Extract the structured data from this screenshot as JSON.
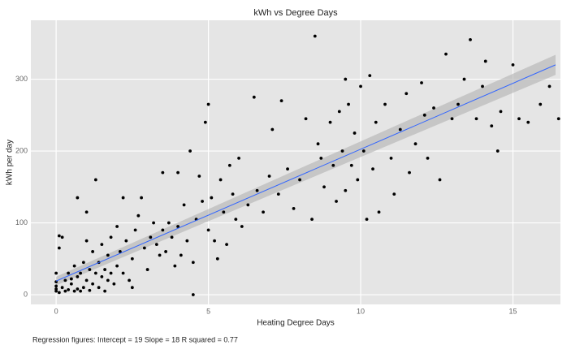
{
  "chart_data": {
    "type": "scatter",
    "title": "kWh vs Degree Days",
    "xlabel": "Heating Degree Days",
    "ylabel": "kWh per day",
    "caption": "Regression figures: Intercept = 19  Slope = 18  R squared = 0.77",
    "xlim": [
      -0.83,
      16.56
    ],
    "ylim": [
      -13.5,
      382
    ],
    "xticks": [
      0,
      5,
      10,
      15
    ],
    "yticks": [
      0,
      100,
      200,
      300
    ],
    "grid": true,
    "color": "#000000",
    "regression": {
      "color": "#3366ff",
      "band_color": "#b0b0b0",
      "x": [
        0,
        16.4
      ],
      "y": [
        19,
        320
      ],
      "lower": [
        13,
        306
      ],
      "upper": [
        25,
        334
      ]
    },
    "x": [
      0,
      0,
      0.1,
      0,
      0,
      0,
      0.1,
      0.1,
      0.2,
      0.2,
      0.3,
      0.3,
      0.4,
      0.4,
      0.5,
      0.5,
      0.6,
      0.6,
      0.7,
      0.7,
      0.7,
      0.8,
      0.8,
      0.9,
      0.9,
      1.0,
      1.0,
      1.0,
      1.1,
      1.1,
      1.2,
      1.2,
      1.3,
      1.3,
      1.4,
      1.4,
      1.5,
      1.5,
      1.6,
      1.6,
      1.7,
      1.7,
      1.8,
      1.8,
      1.9,
      2.0,
      2.0,
      2.1,
      2.2,
      2.2,
      2.3,
      2.4,
      2.5,
      2.5,
      2.6,
      2.7,
      2.8,
      2.9,
      3.0,
      3.1,
      3.2,
      3.3,
      3.4,
      3.5,
      3.5,
      3.6,
      3.7,
      3.8,
      3.9,
      4.0,
      4.0,
      4.1,
      4.2,
      4.3,
      4.4,
      4.5,
      4.5,
      4.6,
      4.7,
      4.8,
      4.9,
      5.0,
      5.0,
      5.1,
      5.2,
      5.3,
      5.4,
      5.5,
      5.6,
      5.7,
      5.8,
      5.9,
      6.0,
      6.1,
      6.3,
      6.5,
      6.6,
      6.8,
      7.0,
      7.1,
      7.3,
      7.4,
      7.6,
      7.8,
      8.0,
      8.2,
      8.4,
      8.5,
      8.6,
      8.7,
      8.8,
      9.0,
      9.1,
      9.2,
      9.3,
      9.4,
      9.5,
      9.5,
      9.6,
      9.7,
      9.8,
      9.9,
      10.0,
      10.1,
      10.2,
      10.3,
      10.4,
      10.5,
      10.6,
      10.8,
      11.0,
      11.1,
      11.3,
      11.5,
      11.6,
      11.8,
      12.0,
      12.1,
      12.2,
      12.4,
      12.6,
      12.8,
      13.0,
      13.2,
      13.4,
      13.6,
      13.8,
      14.0,
      14.1,
      14.3,
      14.5,
      14.6,
      15.0,
      15.2,
      15.5,
      15.9,
      16.2,
      16.5
    ],
    "values": [
      5,
      8,
      3,
      12,
      18,
      30,
      65,
      82,
      80,
      10,
      5,
      20,
      7,
      30,
      15,
      22,
      5,
      40,
      8,
      25,
      135,
      5,
      30,
      10,
      45,
      20,
      115,
      75,
      6,
      35,
      15,
      60,
      30,
      160,
      10,
      45,
      25,
      70,
      35,
      5,
      55,
      20,
      80,
      30,
      15,
      40,
      95,
      60,
      30,
      135,
      75,
      20,
      50,
      10,
      90,
      110,
      135,
      65,
      35,
      80,
      100,
      70,
      55,
      90,
      170,
      60,
      100,
      80,
      40,
      95,
      170,
      55,
      125,
      75,
      200,
      45,
      0,
      105,
      165,
      130,
      240,
      265,
      90,
      135,
      75,
      50,
      160,
      115,
      70,
      180,
      140,
      105,
      190,
      95,
      125,
      275,
      145,
      115,
      165,
      230,
      140,
      270,
      175,
      120,
      160,
      245,
      105,
      360,
      210,
      190,
      150,
      240,
      180,
      130,
      255,
      200,
      300,
      145,
      265,
      180,
      225,
      160,
      290,
      200,
      105,
      305,
      175,
      240,
      115,
      265,
      190,
      140,
      230,
      280,
      170,
      210,
      295,
      250,
      190,
      260,
      160,
      335,
      245,
      265,
      300,
      355,
      245,
      290,
      325,
      235,
      200,
      255,
      320,
      245,
      240,
      265,
      290,
      245
    ]
  }
}
